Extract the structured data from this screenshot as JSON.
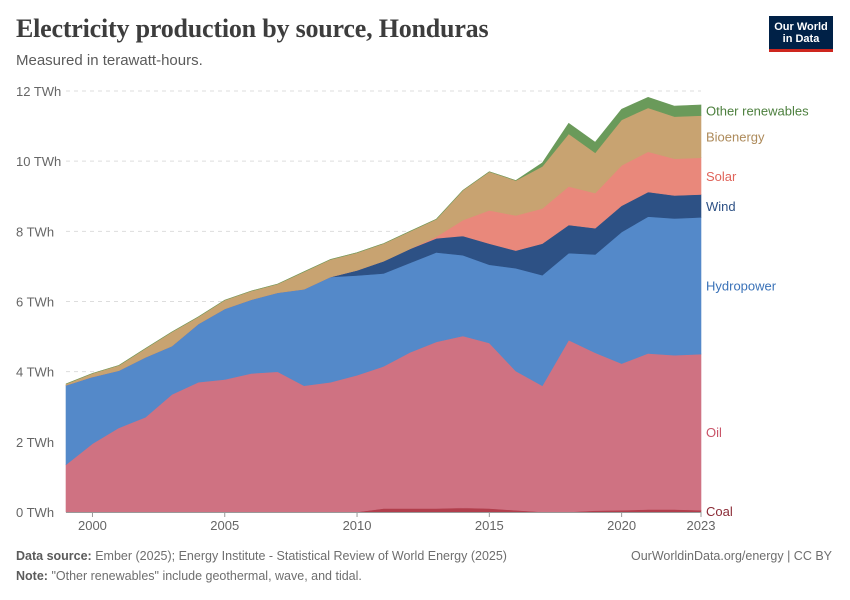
{
  "header": {
    "title": "Electricity production by source, Honduras",
    "subtitle": "Measured in terawatt-hours."
  },
  "logo": {
    "line1": "Our World",
    "line2": "in Data"
  },
  "footer": {
    "source_label": "Data source:",
    "source_text": "Ember (2025); Energy Institute - Statistical Review of World Energy (2025)",
    "note_label": "Note:",
    "note_text": "\"Other renewables\" include geothermal, wave, and tidal.",
    "credit": "OurWorldinData.org/energy | CC BY"
  },
  "chart_data": {
    "type": "area",
    "stacked": true,
    "x": [
      1999,
      2000,
      2001,
      2002,
      2003,
      2004,
      2005,
      2006,
      2007,
      2008,
      2009,
      2010,
      2011,
      2012,
      2013,
      2014,
      2015,
      2016,
      2017,
      2018,
      2019,
      2020,
      2021,
      2022,
      2023
    ],
    "xticks": [
      2000,
      2005,
      2010,
      2015,
      2020,
      2023
    ],
    "ylim": [
      0,
      12
    ],
    "yticks": [
      0,
      2,
      4,
      6,
      8,
      10,
      12
    ],
    "ytick_labels": [
      "0 TWh",
      "2 TWh",
      "4 TWh",
      "6 TWh",
      "8 TWh",
      "10 TWh",
      "12 TWh"
    ],
    "grid": true,
    "legend": "right",
    "series": [
      {
        "name": "Coal",
        "color": "#b13e4c",
        "values": [
          0,
          0,
          0,
          0,
          0,
          0,
          0,
          0,
          0,
          0,
          0,
          0,
          0.1,
          0.1,
          0.1,
          0.12,
          0.1,
          0.05,
          0,
          0,
          0.04,
          0.05,
          0.07,
          0.07,
          0.05
        ]
      },
      {
        "name": "Oil",
        "color": "#cf7282",
        "values": [
          1.35,
          1.95,
          2.4,
          2.7,
          3.35,
          3.7,
          3.78,
          3.95,
          4.0,
          3.6,
          3.7,
          3.9,
          4.05,
          4.45,
          4.75,
          4.9,
          4.72,
          3.97,
          3.6,
          4.9,
          4.5,
          4.18,
          4.45,
          4.4,
          4.45
        ]
      },
      {
        "name": "Hydropower",
        "color": "#5489c9",
        "values": [
          2.26,
          1.9,
          1.63,
          1.71,
          1.38,
          1.66,
          2.01,
          2.1,
          2.25,
          2.75,
          3.0,
          2.84,
          2.65,
          2.55,
          2.55,
          2.3,
          2.23,
          2.93,
          3.15,
          2.48,
          2.8,
          3.75,
          3.9,
          3.9,
          3.9
        ]
      },
      {
        "name": "Wind",
        "color": "#2d5185",
        "values": [
          0,
          0,
          0,
          0,
          0,
          0,
          0,
          0,
          0,
          0,
          0,
          0.15,
          0.35,
          0.4,
          0.4,
          0.55,
          0.6,
          0.5,
          0.9,
          0.8,
          0.75,
          0.75,
          0.7,
          0.65,
          0.65
        ]
      },
      {
        "name": "Solar",
        "color": "#e9887b",
        "values": [
          0,
          0,
          0,
          0,
          0,
          0,
          0,
          0,
          0,
          0,
          0,
          0,
          0,
          0,
          0.05,
          0.45,
          0.95,
          1.0,
          1.0,
          1.1,
          1.0,
          1.15,
          1.15,
          1.05,
          1.05
        ]
      },
      {
        "name": "Bioenergy",
        "color": "#c8a371",
        "values": [
          0.04,
          0.1,
          0.15,
          0.25,
          0.4,
          0.2,
          0.25,
          0.25,
          0.25,
          0.5,
          0.5,
          0.5,
          0.5,
          0.5,
          0.5,
          0.85,
          1.1,
          1.0,
          1.2,
          1.5,
          1.15,
          1.3,
          1.25,
          1.2,
          1.2
        ]
      },
      {
        "name": "Other renewables",
        "color": "#6a9a5a",
        "values": [
          0,
          0,
          0,
          0,
          0,
          0,
          0,
          0,
          0,
          0,
          0,
          0,
          0,
          0,
          0,
          0,
          0,
          0,
          0.1,
          0.3,
          0.3,
          0.3,
          0.3,
          0.3,
          0.3
        ]
      }
    ],
    "label_colors": {
      "Coal": "#8b2b36",
      "Oil": "#c95468",
      "Hydropower": "#3a72b8",
      "Wind": "#2d5185",
      "Solar": "#e0645a",
      "Bioenergy": "#ad8a5a",
      "Other renewables": "#4c7f3d"
    }
  }
}
